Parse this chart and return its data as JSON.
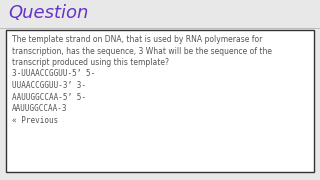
{
  "title": "Question",
  "title_color": "#6633cc",
  "title_fontsize": 13,
  "bg_color": "#e8e8e8",
  "box_bg": "#ffffff",
  "box_edge_color": "#333333",
  "body_lines": [
    "The template strand on DNA, that is used by RNA polymerase for",
    "transcription, has the sequence, 3 What will be the sequence of the",
    "transcript produced using this template?",
    "3-UUAACCGGUU-5’ 5-",
    "UUAACCGGUU-3’ 3-",
    "AAUUGGCCAA-5’ 5-",
    "AAUUGGCCAA-3",
    "« Previous"
  ],
  "body_fontsize": 5.5,
  "body_color": "#555555",
  "fig_width": 3.2,
  "fig_height": 1.8,
  "dpi": 100
}
